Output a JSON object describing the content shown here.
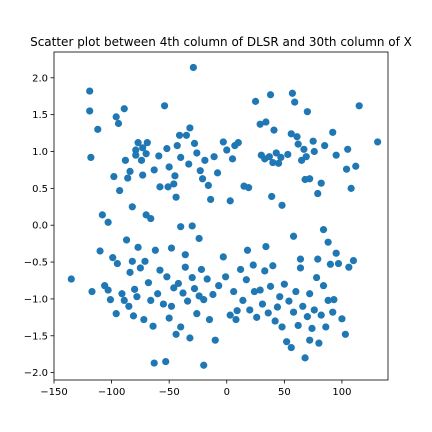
{
  "chart_data": {
    "type": "scatter",
    "title": "Scatter plot between 4th column of DLSR and 30th column of X",
    "xlabel": "",
    "ylabel": "",
    "xlim": [
      -150,
      140
    ],
    "ylim": [
      -2.1,
      2.35
    ],
    "xticks": [
      -150,
      -100,
      -50,
      0,
      50,
      100
    ],
    "yticks": [
      -2.0,
      -1.5,
      -1.0,
      -0.5,
      0.0,
      0.5,
      1.0,
      1.5,
      2.0
    ],
    "xtick_labels": [
      "−150",
      "−100",
      "−50",
      "0",
      "50",
      "100"
    ],
    "ytick_labels": [
      "−2.0",
      "−1.5",
      "−1.0",
      "−0.5",
      "0.0",
      "0.5",
      "1.0",
      "1.5",
      "2.0"
    ],
    "grid": false,
    "marker_color": "#1f77b4",
    "points": [
      [
        -119,
        1.82
      ],
      [
        -119,
        1.55
      ],
      [
        -118,
        0.92
      ],
      [
        -112,
        1.3
      ],
      [
        -108,
        0.14
      ],
      [
        -103,
        0.04
      ],
      [
        -98,
        0.66
      ],
      [
        -96,
        1.47
      ],
      [
        -94,
        1.38
      ],
      [
        -93,
        0.47
      ],
      [
        -89,
        1.58
      ],
      [
        -86,
        0.64
      ],
      [
        -84,
        0.73
      ],
      [
        -79,
        0.95
      ],
      [
        -79,
        1.02
      ],
      [
        -77,
        1.12
      ],
      [
        -74,
        0.88
      ],
      [
        -73,
        1.05
      ],
      [
        -73,
        0.68
      ],
      [
        -70,
        0.97
      ],
      [
        -69,
        1.12
      ],
      [
        -63,
        0.75
      ],
      [
        -59,
        0.94
      ],
      [
        -58,
        0.52
      ],
      [
        -54,
        1.62
      ],
      [
        -52,
        1.04
      ],
      [
        -51,
        0.52
      ],
      [
        -50,
        0.79
      ],
      [
        -46,
        0.56
      ],
      [
        -45,
        0.67
      ],
      [
        -43,
        1.08
      ],
      [
        -41,
        1.22
      ],
      [
        -40,
        0.92
      ],
      [
        -35,
        1.22
      ],
      [
        -33,
        0.83
      ],
      [
        -32,
        1.32
      ],
      [
        -29,
        2.14
      ],
      [
        -28,
        1.11
      ],
      [
        -26,
        0.98
      ],
      [
        -23,
        0.74
      ],
      [
        -21,
        0.63
      ],
      [
        -19,
        0.88
      ],
      [
        -16,
        0.54
      ],
      [
        -11,
        0.93
      ],
      [
        -3,
        1.13
      ],
      [
        0,
        1.02
      ],
      [
        5,
        0.9
      ],
      [
        7,
        1.08
      ],
      [
        10,
        1.12
      ],
      [
        15,
        0.53
      ],
      [
        19,
        0.51
      ],
      [
        25,
        1.68
      ],
      [
        29,
        1.37
      ],
      [
        30,
        0.95
      ],
      [
        33,
        0.9
      ],
      [
        34,
        1.4
      ],
      [
        37,
        0.93
      ],
      [
        38,
        1.77
      ],
      [
        40,
        0.85
      ],
      [
        41,
        1.29
      ],
      [
        43,
        0.98
      ],
      [
        45,
        0.84
      ],
      [
        47,
        0.92
      ],
      [
        53,
        0.96
      ],
      [
        56,
        1.24
      ],
      [
        57,
        1.79
      ],
      [
        59,
        1.67
      ],
      [
        61,
        1.2
      ],
      [
        62,
        1.1
      ],
      [
        65,
        0.88
      ],
      [
        67,
        1.03
      ],
      [
        69,
        0.93
      ],
      [
        70,
        1.54
      ],
      [
        72,
        0.63
      ],
      [
        75,
        1.14
      ],
      [
        76,
        1.0
      ],
      [
        79,
        0.43
      ],
      [
        82,
        0.57
      ],
      [
        85,
        1.08
      ],
      [
        92,
        1.26
      ],
      [
        95,
        0.95
      ],
      [
        104,
        0.76
      ],
      [
        105,
        1.03
      ],
      [
        108,
        0.5
      ],
      [
        112,
        0.8
      ],
      [
        115,
        1.62
      ],
      [
        131,
        1.13
      ],
      [
        -135,
        -0.73
      ],
      [
        -117,
        -0.9
      ],
      [
        -110,
        -0.35
      ],
      [
        -106,
        -0.82
      ],
      [
        -103,
        -0.88
      ],
      [
        -101,
        -1.01
      ],
      [
        -99,
        -0.44
      ],
      [
        -96,
        -1.2
      ],
      [
        -95,
        -0.52
      ],
      [
        -91,
        -0.93
      ],
      [
        -89,
        -1.02
      ],
      [
        -87,
        -0.2
      ],
      [
        -85,
        -1.1
      ],
      [
        -84,
        -0.64
      ],
      [
        -82,
        -0.49
      ],
      [
        -81,
        -1.23
      ],
      [
        -80,
        -0.87
      ],
      [
        -78,
        -0.97
      ],
      [
        -75,
        -0.58
      ],
      [
        -72,
        -1.28
      ],
      [
        -71,
        -0.49
      ],
      [
        -68,
        -0.78
      ],
      [
        -66,
        -1.02
      ],
      [
        -64,
        -1.37
      ],
      [
        -62,
        -0.34
      ],
      [
        -60,
        -0.93
      ],
      [
        -58,
        -0.61
      ],
      [
        -55,
        -1.07
      ],
      [
        -52,
        -0.7
      ],
      [
        -50,
        -1.26
      ],
      [
        -48,
        -1.1
      ],
      [
        -46,
        -0.85
      ],
      [
        -44,
        -1.48
      ],
      [
        -42,
        -0.79
      ],
      [
        -40,
        -1.38
      ],
      [
        -38,
        -0.92
      ],
      [
        -36,
        -0.57
      ],
      [
        -34,
        -1.03
      ],
      [
        -32,
        -1.53
      ],
      [
        -30,
        -0.71
      ],
      [
        -28,
        -0.86
      ],
      [
        -26,
        -1.2
      ],
      [
        -24,
        -0.96
      ],
      [
        -22,
        -0.6
      ],
      [
        -20,
        -1.01
      ],
      [
        -17,
        -0.73
      ],
      [
        -15,
        -1.28
      ],
      [
        -12,
        -0.94
      ],
      [
        -10,
        -1.56
      ],
      [
        -7,
        -0.82
      ],
      [
        -3,
        -0.43
      ],
      [
        -1,
        -0.7
      ],
      [
        3,
        -1.22
      ],
      [
        6,
        -0.9
      ],
      [
        9,
        -1.16
      ],
      [
        12,
        -0.6
      ],
      [
        14,
        -1.02
      ],
      [
        17,
        -0.74
      ],
      [
        20,
        -1.15
      ],
      [
        23,
        -0.54
      ],
      [
        26,
        -1.25
      ],
      [
        29,
        -0.88
      ],
      [
        31,
        -1.07
      ],
      [
        33,
        -0.62
      ],
      [
        36,
        -1.19
      ],
      [
        38,
        -0.83
      ],
      [
        40,
        -0.55
      ],
      [
        42,
        -1.3
      ],
      [
        44,
        -1.11
      ],
      [
        46,
        -0.97
      ],
      [
        48,
        -1.38
      ],
      [
        50,
        -0.8
      ],
      [
        52,
        -1.58
      ],
      [
        54,
        -1.03
      ],
      [
        56,
        -1.66
      ],
      [
        58,
        -1.18
      ],
      [
        60,
        -0.9
      ],
      [
        62,
        -1.36
      ],
      [
        64,
        -0.58
      ],
      [
        66,
        -1.1
      ],
      [
        68,
        -1.8
      ],
      [
        70,
        -1.24
      ],
      [
        72,
        -0.93
      ],
      [
        74,
        -1.4
      ],
      [
        76,
        -1.15
      ],
      [
        78,
        -0.71
      ],
      [
        80,
        -1.6
      ],
      [
        82,
        -1.22
      ],
      [
        84,
        -0.82
      ],
      [
        86,
        -1.38
      ],
      [
        88,
        -1.02
      ],
      [
        90,
        -0.53
      ],
      [
        92,
        -1.18
      ],
      [
        95,
        -0.38
      ],
      [
        100,
        -1.27
      ],
      [
        103,
        -1.48
      ],
      [
        106,
        -0.57
      ],
      [
        110,
        -0.48
      ],
      [
        -88,
        0.88
      ],
      [
        -82,
        0.25
      ],
      [
        -77,
        -0.3
      ],
      [
        -70,
        0.14
      ],
      [
        -66,
        0.09
      ],
      [
        -63,
        -1.87
      ],
      [
        -53,
        -1.85
      ],
      [
        -48,
        -0.31
      ],
      [
        -44,
        0.38
      ],
      [
        -40,
        -0.02
      ],
      [
        -36,
        -0.4
      ],
      [
        -30,
        -0.01
      ],
      [
        -24,
        -0.18
      ],
      [
        -20,
        -1.9
      ],
      [
        -14,
        0.35
      ],
      [
        -8,
        0.71
      ],
      [
        3,
        0.33
      ],
      [
        8,
        -1.28
      ],
      [
        18,
        -0.34
      ],
      [
        24,
        -0.9
      ],
      [
        34,
        -0.29
      ],
      [
        39,
        0.39
      ],
      [
        48,
        0.27
      ],
      [
        58,
        -0.15
      ],
      [
        64,
        -0.46
      ],
      [
        68,
        0.62
      ],
      [
        72,
        -1.56
      ],
      [
        79,
        -0.46
      ],
      [
        84,
        -0.06
      ],
      [
        88,
        -0.23
      ],
      [
        93,
        -1.01
      ],
      [
        97,
        -0.52
      ]
    ]
  }
}
